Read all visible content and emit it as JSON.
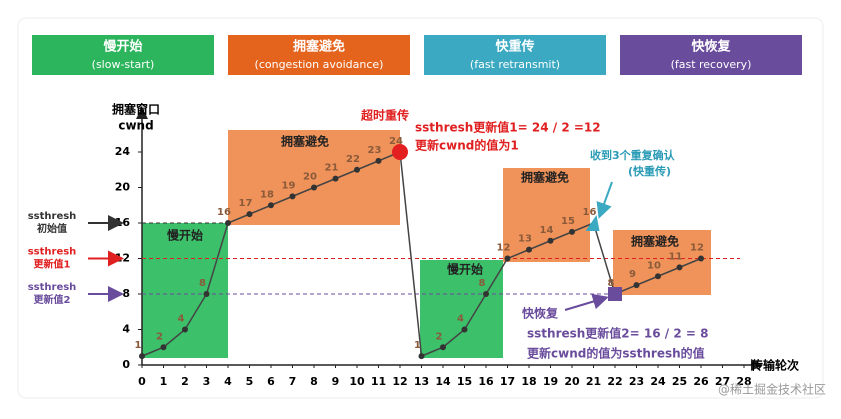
{
  "chart_data": {
    "type": "line",
    "phases": [
      {
        "name": "慢开始",
        "sub": "(slow-start)",
        "color": "#2db55d"
      },
      {
        "name": "拥塞避免",
        "sub": "(congestion avoidance)",
        "color": "#e4641e"
      },
      {
        "name": "快重传",
        "sub": "(fast retransmit)",
        "color": "#3aa9c1"
      },
      {
        "name": "快恢复",
        "sub": "(fast recovery)",
        "color": "#6a4c9c"
      }
    ],
    "y_label": [
      "拥塞窗口",
      "cwnd"
    ],
    "x_label": "传输轮次",
    "x": [
      0,
      1,
      2,
      3,
      4,
      5,
      6,
      7,
      8,
      9,
      10,
      11,
      12,
      13,
      14,
      15,
      16,
      17,
      18,
      19,
      20,
      21,
      22,
      23,
      24,
      25,
      26
    ],
    "series": [
      {
        "color": "#444444",
        "values": [
          1,
          2,
          4,
          8,
          16,
          17,
          18,
          19,
          20,
          21,
          22,
          23,
          24,
          1,
          2,
          4,
          8,
          12,
          13,
          14,
          15,
          16,
          8,
          9,
          10,
          11,
          12
        ]
      }
    ],
    "xlim": [
      0,
      28
    ],
    "xticks": [
      0,
      1,
      2,
      3,
      4,
      5,
      6,
      7,
      8,
      9,
      10,
      11,
      12,
      13,
      14,
      15,
      16,
      17,
      18,
      19,
      20,
      21,
      22,
      23,
      24,
      25,
      26,
      27,
      28
    ],
    "ylim": [
      0,
      28
    ],
    "yticks": [
      0,
      4,
      8,
      12,
      16,
      20,
      24
    ],
    "regions": [
      {
        "label": "慢开始",
        "color": "#3cc06a"
      },
      {
        "label": "拥塞避免",
        "color": "#f0935a"
      },
      {
        "label": "慢开始",
        "color": "#3cc06a"
      },
      {
        "label": "拥塞避免",
        "color": "#f0935a"
      },
      {
        "label": "拥塞避免",
        "color": "#f0935a"
      }
    ],
    "thresholds": [
      {
        "value": 16,
        "label": [
          "ssthresh",
          "初始值"
        ],
        "color": "#333333"
      },
      {
        "value": 12,
        "label": [
          "ssthresh",
          "更新值1"
        ],
        "color": "#e02020"
      },
      {
        "value": 8,
        "label": [
          "ssthresh",
          "更新值2"
        ],
        "color": "#6a4c9c"
      }
    ],
    "annotations": [
      {
        "text": "超时重传",
        "color": "#e02020"
      },
      {
        "text": "ssthresh更新值1= 24 / 2 =12",
        "color": "#e02020"
      },
      {
        "text": "更新cwnd的值为1",
        "color": "#e02020"
      },
      {
        "text": "收到3个重复确认",
        "color": "#2a9bb5"
      },
      {
        "text": "(快重传)",
        "color": "#2a9bb5"
      },
      {
        "text": "快恢复",
        "color": "#6a4c9c"
      },
      {
        "text": "ssthresh更新值2= 16 / 2 = 8",
        "color": "#6a4c9c"
      },
      {
        "text": "更新cwnd的值为ssthresh的值",
        "color": "#6a4c9c"
      }
    ],
    "watermark": "@稀土掘金技术社区"
  }
}
